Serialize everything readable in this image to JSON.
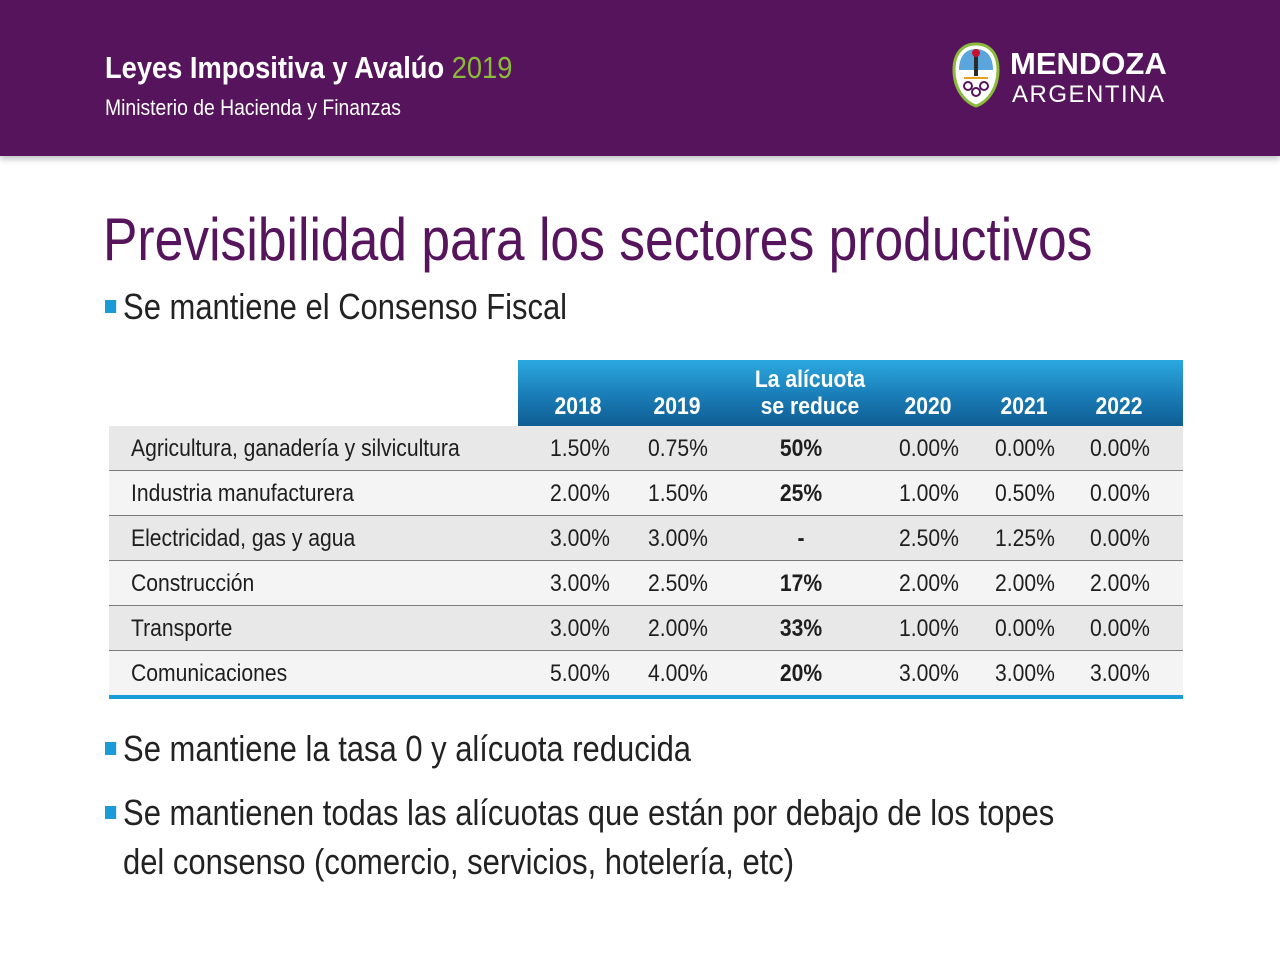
{
  "header": {
    "title": "Leyes Impositiva y Avalúo",
    "year": "2019",
    "subtitle": "Ministerio de Hacienda y Finanzas",
    "logo_name": "MENDOZA",
    "logo_country": "ARGENTINA",
    "logo_icon": "mendoza-coat-of-arms-icon"
  },
  "slide": {
    "title": "Previsibilidad para los sectores productivos",
    "bullets": [
      "Se mantiene el Consenso Fiscal",
      "Se mantiene la tasa 0 y alícuota reducida",
      "Se mantienen todas las alícuotas que están por debajo de los topes",
      "del consenso (comercio, servicios, hotelería, etc)"
    ]
  },
  "table": {
    "headers": {
      "y2018": "2018",
      "y2019": "2019",
      "reduce_line1": "La alícuota",
      "reduce_line2": "se reduce",
      "y2020": "2020",
      "y2021": "2021",
      "y2022": "2022"
    },
    "rows": [
      {
        "sector": "Agricultura, ganadería y silvicultura",
        "y2018": "1.50%",
        "y2019": "0.75%",
        "reduce": "50%",
        "y2020": "0.00%",
        "y2021": "0.00%",
        "y2022": "0.00%"
      },
      {
        "sector": "Industria  manufacturera",
        "y2018": "2.00%",
        "y2019": "1.50%",
        "reduce": "25%",
        "y2020": "1.00%",
        "y2021": "0.50%",
        "y2022": "0.00%"
      },
      {
        "sector": "Electricidad, gas y agua",
        "y2018": "3.00%",
        "y2019": "3.00%",
        "reduce": "-",
        "y2020": "2.50%",
        "y2021": "1.25%",
        "y2022": "0.00%"
      },
      {
        "sector": "Construcción",
        "y2018": "3.00%",
        "y2019": "2.50%",
        "reduce": "17%",
        "y2020": "2.00%",
        "y2021": "2.00%",
        "y2022": "2.00%"
      },
      {
        "sector": "Transporte",
        "y2018": "3.00%",
        "y2019": "2.00%",
        "reduce": "33%",
        "y2020": "1.00%",
        "y2021": "0.00%",
        "y2022": "0.00%"
      },
      {
        "sector": "Comunicaciones",
        "y2018": "5.00%",
        "y2019": "4.00%",
        "reduce": "20%",
        "y2020": "3.00%",
        "y2021": "3.00%",
        "y2022": "3.00%"
      }
    ]
  },
  "colors": {
    "header_bg": "#56145c",
    "year_accent": "#8bbb3a",
    "table_header": "#1878b2",
    "bullet_square": "#1a9ad6",
    "title_text": "#56145c"
  }
}
